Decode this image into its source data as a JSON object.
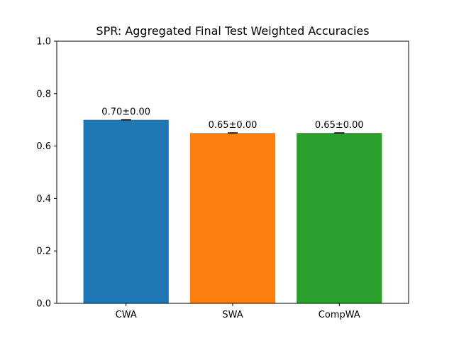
{
  "chart_data": {
    "type": "bar",
    "title": "SPR: Aggregated Final Test Weighted Accuracies",
    "xlabel": "",
    "ylabel": "",
    "categories": [
      "CWA",
      "SWA",
      "CompWA"
    ],
    "values": [
      0.7,
      0.65,
      0.65
    ],
    "errors": [
      0.0,
      0.0,
      0.0
    ],
    "data_labels": [
      "0.70±0.00",
      "0.65±0.00",
      "0.65±0.00"
    ],
    "colors": [
      "#1f77b4",
      "#ff7f0e",
      "#2ca02c"
    ],
    "ylim": [
      0.0,
      1.0
    ],
    "yticks": [
      0.0,
      0.2,
      0.4,
      0.6,
      0.8,
      1.0
    ],
    "ytick_labels": [
      "0.0",
      "0.2",
      "0.4",
      "0.6",
      "0.8",
      "1.0"
    ],
    "grid": false,
    "legend": "none"
  }
}
